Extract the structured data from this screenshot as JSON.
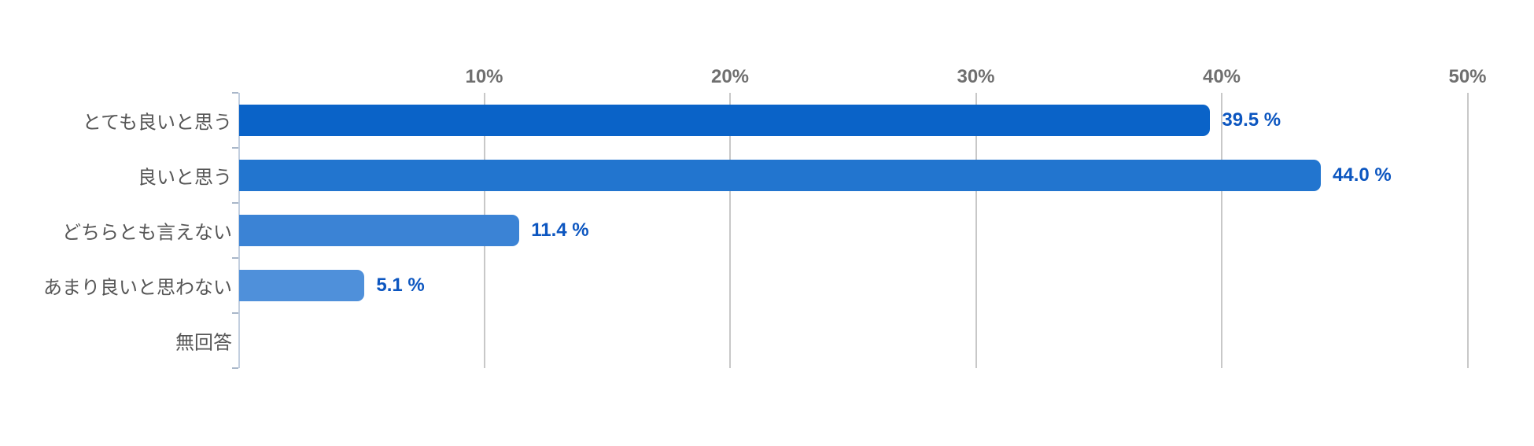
{
  "chart_data": {
    "type": "bar",
    "orientation": "horizontal",
    "title": "",
    "categories": [
      "とても良いと思う",
      "良いと思う",
      "どちらとも言えない",
      "あまり良いと思わない",
      "無回答"
    ],
    "values": [
      39.5,
      44.0,
      11.4,
      5.1,
      0
    ],
    "value_labels": [
      "39.5 %",
      "44.0 %",
      "11.4 %",
      "5.1 %",
      ""
    ],
    "x_tick_values": [
      10,
      20,
      30,
      40,
      50
    ],
    "x_tick_labels": [
      "10%",
      "20%",
      "30%",
      "40%",
      "50%"
    ],
    "xlim": [
      0,
      50
    ],
    "grid": true,
    "legend": false,
    "bar_colors": [
      "#0a63c8",
      "#2275cf",
      "#3b83d5",
      "#4f90da",
      "#5f98de"
    ],
    "colors": {
      "background": "#ffffff",
      "value_label": "#0c56c0",
      "category_label": "#565656",
      "axis_tick_label": "#6f6f6f",
      "gridline": "#c8c8c8",
      "axis_line": "#c3cfdf"
    }
  }
}
